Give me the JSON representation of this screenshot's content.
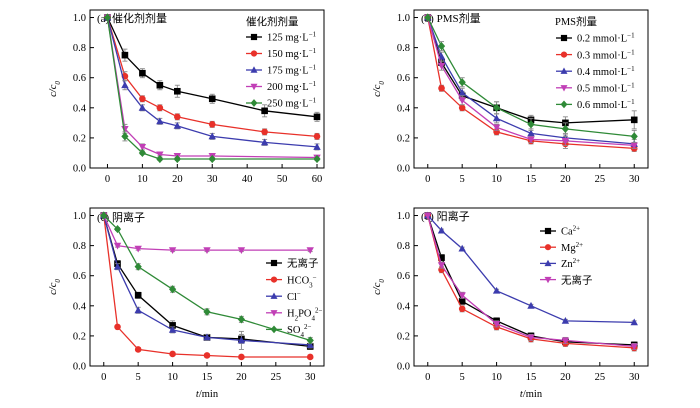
{
  "figure": {
    "panels": [
      {
        "id": "a",
        "title": "(a) 催化剂剂量",
        "legend_title": "催化剂剂量",
        "ylabel": "c/c₀",
        "xlabel": "",
        "x_ticks": [
          "0",
          "10",
          "20",
          "30",
          "40",
          "50",
          "60"
        ],
        "y_ticks": [
          "0.0",
          "0.2",
          "0.4",
          "0.6",
          "0.8",
          "1.0"
        ]
      },
      {
        "id": "b",
        "title": "(b) PMS剂量",
        "legend_title": "PMS剂量",
        "ylabel": "c/c₀",
        "xlabel": "",
        "x_ticks": [
          "0",
          "5",
          "10",
          "15",
          "20",
          "25",
          "30"
        ],
        "y_ticks": [
          "0.0",
          "0.2",
          "0.4",
          "0.6",
          "0.8",
          "1.0"
        ]
      },
      {
        "id": "c",
        "title": "(c) 阴离子",
        "legend_title": "",
        "ylabel": "c/c₀",
        "xlabel": "t/min",
        "x_ticks": [
          "0",
          "5",
          "10",
          "15",
          "20",
          "25",
          "30"
        ],
        "y_ticks": [
          "0.0",
          "0.2",
          "0.4",
          "0.6",
          "0.8",
          "1.0"
        ]
      },
      {
        "id": "d",
        "title": "(d) 阳离子",
        "legend_title": "",
        "ylabel": "c/c₀",
        "xlabel": "t/min",
        "x_ticks": [
          "0",
          "5",
          "10",
          "15",
          "20",
          "25",
          "30"
        ],
        "y_ticks": [
          "0.0",
          "0.2",
          "0.4",
          "0.6",
          "0.8",
          "1.0"
        ]
      }
    ]
  },
  "chart_data": [
    {
      "type": "line",
      "title": "(a) 催化剂剂量",
      "legend_title": "催化剂剂量",
      "ylabel": "c/c₀",
      "xlim": [
        -5,
        62
      ],
      "ylim": [
        0,
        1.05
      ],
      "legend_position": "top-right",
      "series": [
        {
          "name": "125 mg·L⁻¹",
          "color": "#000000",
          "marker": "square",
          "x": [
            0,
            5,
            10,
            15,
            20,
            30,
            45,
            60
          ],
          "y": [
            1.0,
            0.75,
            0.63,
            0.55,
            0.51,
            0.46,
            0.38,
            0.34
          ],
          "err": [
            0,
            0.04,
            0.03,
            0.03,
            0.04,
            0.03,
            0.04,
            0.03
          ]
        },
        {
          "name": "150 mg·L⁻¹",
          "color": "#e8312a",
          "marker": "circle",
          "x": [
            0,
            5,
            10,
            15,
            20,
            30,
            45,
            60
          ],
          "y": [
            1.0,
            0.61,
            0.46,
            0.4,
            0.34,
            0.29,
            0.24,
            0.21
          ],
          "err": [
            0,
            0.03,
            0.02,
            0.02,
            0.02,
            0.02,
            0.02,
            0.02
          ]
        },
        {
          "name": "175 mg·L⁻¹",
          "color": "#3c3cae",
          "marker": "triangle",
          "x": [
            0,
            5,
            10,
            15,
            20,
            30,
            45,
            60
          ],
          "y": [
            1.0,
            0.55,
            0.4,
            0.31,
            0.28,
            0.21,
            0.17,
            0.14
          ],
          "err": [
            0,
            0.03,
            0.02,
            0.02,
            0.02,
            0.02,
            0.02,
            0.02
          ]
        },
        {
          "name": "200 mg·L⁻¹",
          "color": "#c13fb6",
          "marker": "triangle-down",
          "x": [
            0,
            5,
            10,
            15,
            20,
            30,
            60
          ],
          "y": [
            1.0,
            0.26,
            0.14,
            0.09,
            0.08,
            0.08,
            0.07
          ],
          "err": [
            0,
            0.03,
            0.02,
            0.01,
            0.01,
            0.01,
            0.01
          ]
        },
        {
          "name": "250 mg·L⁻¹",
          "color": "#2f8a37",
          "marker": "diamond",
          "x": [
            0,
            5,
            10,
            15,
            20,
            30,
            60
          ],
          "y": [
            1.0,
            0.21,
            0.1,
            0.06,
            0.06,
            0.06,
            0.06
          ],
          "err": [
            0,
            0.03,
            0.01,
            0.01,
            0.01,
            0.01,
            0.01
          ]
        }
      ]
    },
    {
      "type": "line",
      "title": "(b) PMS剂量",
      "legend_title": "PMS剂量",
      "ylabel": "c/c₀",
      "xlim": [
        -2,
        32
      ],
      "ylim": [
        0,
        1.05
      ],
      "legend_position": "top-right",
      "series": [
        {
          "name": "0.2 mmol·L⁻¹",
          "color": "#000000",
          "marker": "square",
          "x": [
            0,
            2,
            5,
            10,
            15,
            20,
            30
          ],
          "y": [
            1.0,
            0.7,
            0.48,
            0.4,
            0.32,
            0.3,
            0.32
          ],
          "err": [
            0,
            0.02,
            0.03,
            0.04,
            0.03,
            0.04,
            0.06
          ]
        },
        {
          "name": "0.3 mmol·L⁻¹",
          "color": "#e8312a",
          "marker": "circle",
          "x": [
            0,
            2,
            5,
            10,
            15,
            20,
            30
          ],
          "y": [
            1.0,
            0.53,
            0.4,
            0.24,
            0.18,
            0.16,
            0.13
          ],
          "err": [
            0,
            0.02,
            0.02,
            0.02,
            0.02,
            0.03,
            0.02
          ]
        },
        {
          "name": "0.4 mmol·L⁻¹",
          "color": "#3c3cae",
          "marker": "triangle",
          "x": [
            0,
            2,
            5,
            10,
            15,
            20,
            30
          ],
          "y": [
            1.0,
            0.74,
            0.5,
            0.33,
            0.23,
            0.2,
            0.16
          ],
          "err": [
            0,
            0.03,
            0.03,
            0.03,
            0.03,
            0.03,
            0.03
          ]
        },
        {
          "name": "0.5 mmol·L⁻¹",
          "color": "#c13fb6",
          "marker": "triangle-down",
          "x": [
            0,
            2,
            5,
            10,
            15,
            20,
            30
          ],
          "y": [
            1.0,
            0.68,
            0.45,
            0.27,
            0.19,
            0.18,
            0.15
          ],
          "err": [
            0,
            0.03,
            0.03,
            0.02,
            0.02,
            0.03,
            0.02
          ]
        },
        {
          "name": "0.6 mmol·L⁻¹",
          "color": "#2f8a37",
          "marker": "diamond",
          "x": [
            0,
            2,
            5,
            10,
            15,
            20,
            30
          ],
          "y": [
            1.0,
            0.81,
            0.57,
            0.4,
            0.29,
            0.26,
            0.21
          ],
          "err": [
            0,
            0.03,
            0.03,
            0.04,
            0.04,
            0.04,
            0.04
          ]
        }
      ]
    },
    {
      "type": "line",
      "title": "(c) 阴离子",
      "xlabel": "t/min",
      "ylabel": "c/c₀",
      "xlim": [
        -2,
        32
      ],
      "ylim": [
        0,
        1.05
      ],
      "legend_position": "right",
      "series": [
        {
          "name": "无离子",
          "color": "#000000",
          "marker": "square",
          "x": [
            0,
            2,
            5,
            10,
            15,
            20,
            30
          ],
          "y": [
            1.0,
            0.68,
            0.47,
            0.27,
            0.19,
            0.18,
            0.13
          ],
          "err": [
            0,
            0.02,
            0.02,
            0.03,
            0.02,
            0.03,
            0.02
          ]
        },
        {
          "name": "HCO₃⁻",
          "color": "#e8312a",
          "marker": "circle",
          "x": [
            0,
            2,
            5,
            10,
            15,
            20,
            30
          ],
          "y": [
            1.0,
            0.26,
            0.11,
            0.08,
            0.07,
            0.06,
            0.06
          ],
          "err": [
            0,
            0.01,
            0.01,
            0.01,
            0.01,
            0.01,
            0.01
          ]
        },
        {
          "name": "Cl⁻",
          "color": "#3c3cae",
          "marker": "triangle",
          "x": [
            0,
            2,
            5,
            10,
            15,
            20,
            30
          ],
          "y": [
            1.0,
            0.66,
            0.37,
            0.24,
            0.19,
            0.17,
            0.14
          ],
          "err": [
            0,
            0.02,
            0.02,
            0.02,
            0.02,
            0.06,
            0.02
          ]
        },
        {
          "name": "H₂PO₄²⁻",
          "color": "#c13fb6",
          "marker": "triangle-down",
          "x": [
            0,
            2,
            5,
            10,
            15,
            20,
            30
          ],
          "y": [
            1.0,
            0.8,
            0.78,
            0.77,
            0.77,
            0.77,
            0.77
          ],
          "err": [
            0,
            0.01,
            0.01,
            0.01,
            0.01,
            0.01,
            0.01
          ]
        },
        {
          "name": "SO₄²⁻",
          "color": "#2f8a37",
          "marker": "diamond",
          "x": [
            0,
            2,
            5,
            10,
            15,
            20,
            30
          ],
          "y": [
            1.0,
            0.91,
            0.66,
            0.51,
            0.36,
            0.31,
            0.17
          ],
          "err": [
            0,
            0.01,
            0.02,
            0.02,
            0.02,
            0.02,
            0.02
          ]
        }
      ]
    },
    {
      "type": "line",
      "title": "(d) 阳离子",
      "xlabel": "t/min",
      "ylabel": "c/c₀",
      "xlim": [
        -2,
        32
      ],
      "ylim": [
        0,
        1.05
      ],
      "legend_position": "top-right",
      "series": [
        {
          "name": "Ca²⁺",
          "color": "#000000",
          "marker": "square",
          "x": [
            0,
            2,
            5,
            10,
            15,
            20,
            30
          ],
          "y": [
            1.0,
            0.72,
            0.43,
            0.3,
            0.2,
            0.16,
            0.14
          ],
          "err": [
            0,
            0.02,
            0.02,
            0.02,
            0.02,
            0.02,
            0.02
          ]
        },
        {
          "name": "Mg²⁺",
          "color": "#e8312a",
          "marker": "circle",
          "x": [
            0,
            2,
            5,
            10,
            15,
            20,
            30
          ],
          "y": [
            1.0,
            0.64,
            0.38,
            0.26,
            0.18,
            0.15,
            0.12
          ],
          "err": [
            0,
            0.02,
            0.02,
            0.02,
            0.02,
            0.02,
            0.02
          ]
        },
        {
          "name": "Zn²⁺",
          "color": "#3c3cae",
          "marker": "triangle",
          "x": [
            0,
            2,
            5,
            10,
            15,
            20,
            30
          ],
          "y": [
            1.0,
            0.9,
            0.78,
            0.5,
            0.4,
            0.3,
            0.29
          ],
          "err": [
            0,
            0.01,
            0.01,
            0.01,
            0.01,
            0.01,
            0.01
          ]
        },
        {
          "name": "无离子",
          "color": "#c13fb6",
          "marker": "triangle-down",
          "x": [
            0,
            2,
            5,
            10,
            15,
            20,
            30
          ],
          "y": [
            1.0,
            0.67,
            0.47,
            0.28,
            0.19,
            0.17,
            0.13
          ],
          "err": [
            0,
            0.02,
            0.02,
            0.02,
            0.02,
            0.02,
            0.02
          ]
        }
      ]
    }
  ]
}
